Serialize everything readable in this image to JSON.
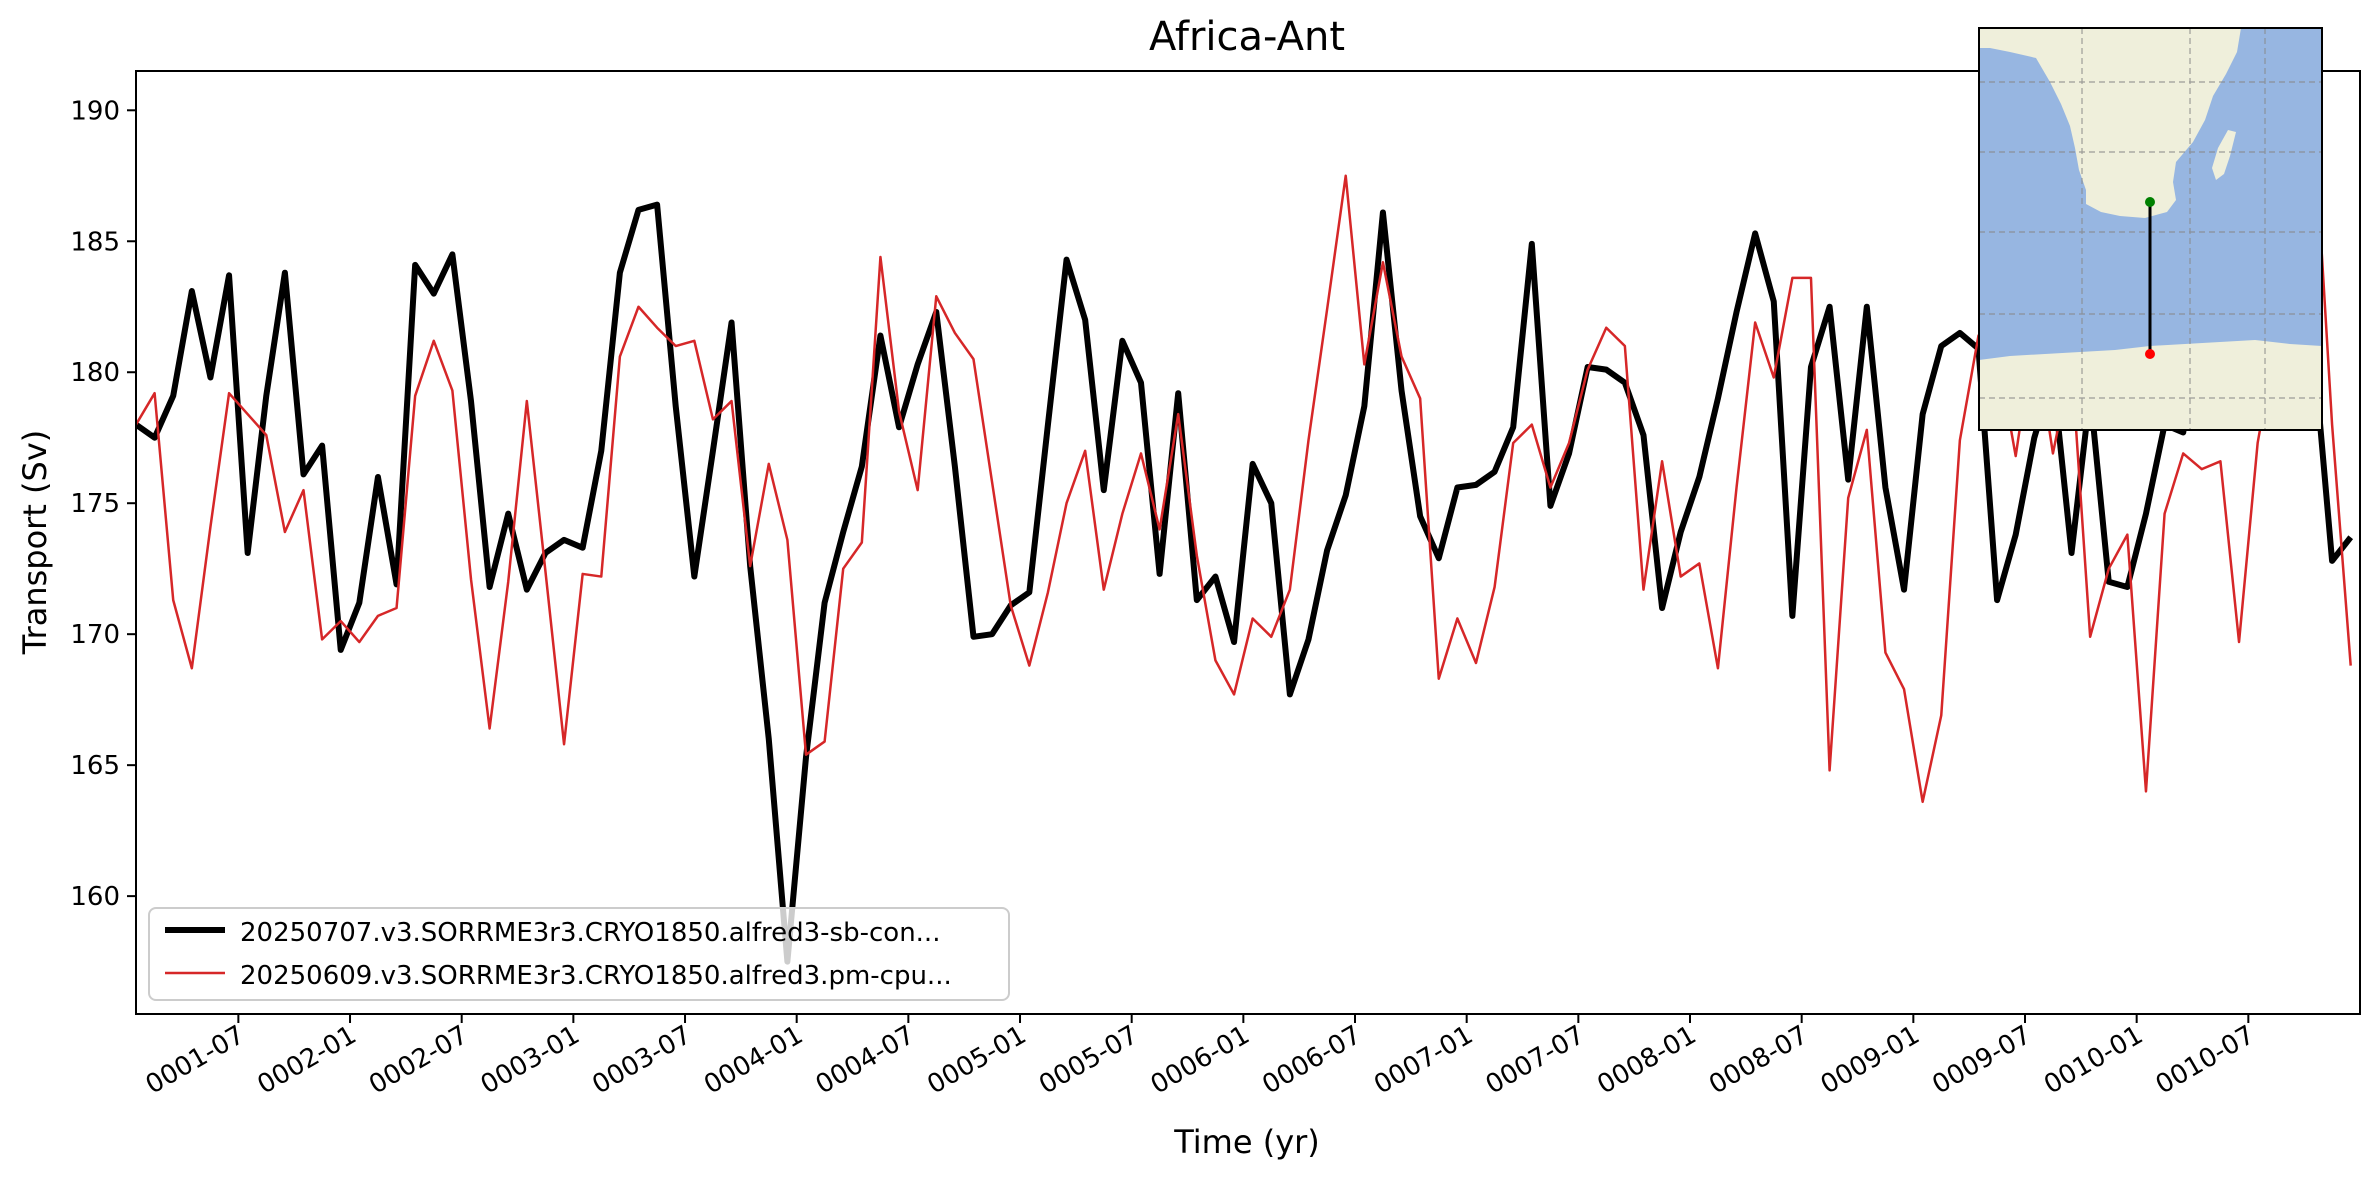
{
  "chart_data": {
    "type": "line",
    "title": "Africa-Ant",
    "xlabel": "Time (yr)",
    "ylabel": "Transport (Sv)",
    "ylim": [
      155.5,
      191.5
    ],
    "xlim": [
      0,
      119.5
    ],
    "yticks": [
      160,
      165,
      170,
      175,
      180,
      185,
      190
    ],
    "xticks": [
      {
        "label": "0001-07",
        "pos": 5.5
      },
      {
        "label": "0002-01",
        "pos": 11.5
      },
      {
        "label": "0002-07",
        "pos": 17.5
      },
      {
        "label": "0003-01",
        "pos": 23.5
      },
      {
        "label": "0003-07",
        "pos": 29.5
      },
      {
        "label": "0004-01",
        "pos": 35.5
      },
      {
        "label": "0004-07",
        "pos": 41.5
      },
      {
        "label": "0005-01",
        "pos": 47.5
      },
      {
        "label": "0005-07",
        "pos": 53.5
      },
      {
        "label": "0006-01",
        "pos": 59.5
      },
      {
        "label": "0006-07",
        "pos": 65.5
      },
      {
        "label": "0007-01",
        "pos": 71.5
      },
      {
        "label": "0007-07",
        "pos": 77.5
      },
      {
        "label": "0008-01",
        "pos": 83.5
      },
      {
        "label": "0008-07",
        "pos": 89.5
      },
      {
        "label": "0009-01",
        "pos": 95.5
      },
      {
        "label": "0009-07",
        "pos": 101.5
      },
      {
        "label": "0010-01",
        "pos": 107.5
      },
      {
        "label": "0010-07",
        "pos": 113.5
      }
    ],
    "series": [
      {
        "name": "20250707.v3.SORRME3r3.CRYO1850.alfred3-sb-con...",
        "color": "#000000",
        "values": [
          178.0,
          177.5,
          179.1,
          183.1,
          179.8,
          183.7,
          173.1,
          179.1,
          183.8,
          176.1,
          177.2,
          169.4,
          171.2,
          176.0,
          171.9,
          184.1,
          183.0,
          184.5,
          178.9,
          171.8,
          174.6,
          171.7,
          173.1,
          173.6,
          173.3,
          177.0,
          183.8,
          186.2,
          186.4,
          178.7,
          172.2,
          177.0,
          181.9,
          172.6,
          166.0,
          157.5,
          165.3,
          171.2,
          173.9,
          176.4,
          181.4,
          177.9,
          180.3,
          182.3,
          176.4,
          169.9,
          170.0,
          171.1,
          171.6,
          178.0,
          184.3,
          182.0,
          175.5,
          181.2,
          179.6,
          172.3,
          179.2,
          171.3,
          172.2,
          169.7,
          176.5,
          175.0,
          167.7,
          169.8,
          173.2,
          175.3,
          178.7,
          186.1,
          179.3,
          174.5,
          172.9,
          175.6,
          175.7,
          176.2,
          177.9,
          184.9,
          174.9,
          176.9,
          180.2,
          180.1,
          179.6,
          177.6,
          171.0,
          173.9,
          176.0,
          179.0,
          182.3,
          185.3,
          182.7,
          170.7,
          180.2,
          182.5,
          175.9,
          182.5,
          175.6,
          171.7,
          178.4,
          181.0,
          181.5,
          180.9,
          171.3,
          173.8,
          177.5,
          179.9,
          173.1,
          179.2,
          172.0,
          171.8,
          174.6,
          178.0,
          177.7,
          182.3,
          182.2,
          181.7,
          180.8,
          178.0,
          182.0,
          180.9,
          172.8,
          173.7
        ]
      },
      {
        "name": "20250609.v3.SORRME3r3.CRYO1850.alfred3.pm-cpu...",
        "color": "#d62728",
        "values": [
          178.0,
          179.2,
          171.3,
          168.7,
          174.1,
          179.2,
          178.4,
          177.6,
          173.9,
          175.5,
          169.8,
          170.5,
          169.7,
          170.7,
          171.0,
          179.1,
          181.2,
          179.3,
          172.1,
          166.4,
          172.0,
          178.9,
          172.4,
          165.8,
          172.3,
          172.2,
          180.6,
          182.5,
          181.7,
          181.0,
          181.2,
          178.2,
          178.9,
          172.6,
          176.5,
          173.6,
          165.4,
          165.9,
          172.5,
          173.5,
          184.4,
          178.5,
          175.5,
          182.9,
          181.5,
          180.5,
          175.8,
          171.1,
          168.8,
          171.6,
          175.0,
          177.0,
          171.7,
          174.6,
          176.9,
          174.0,
          178.4,
          173.0,
          169.0,
          167.7,
          170.6,
          169.9,
          171.7,
          177.4,
          182.4,
          187.5,
          180.3,
          184.2,
          180.6,
          179.0,
          168.3,
          170.6,
          168.9,
          171.8,
          177.3,
          178.0,
          175.6,
          177.3,
          180.1,
          181.7,
          181.0,
          171.7,
          176.6,
          172.2,
          172.7,
          168.7,
          175.6,
          181.9,
          179.8,
          183.6,
          183.6,
          164.8,
          175.2,
          177.8,
          169.3,
          167.9,
          163.6,
          166.9,
          177.4,
          181.4,
          180.8,
          176.8,
          181.6,
          176.9,
          180.4,
          169.9,
          172.5,
          173.8,
          164.0,
          174.6,
          176.9,
          176.3,
          176.6,
          169.7,
          177.3,
          181.3,
          180.1,
          189.8,
          178.0,
          168.8
        ]
      }
    ],
    "legend_location": "lower-left",
    "inset_map": {
      "description": "Transect from southern Africa to Antarctica",
      "colors": {
        "ocean": "#97b6e1",
        "land": "#efefdb",
        "line": "#000000",
        "start": "#008000",
        "end": "#ff0000"
      }
    }
  }
}
